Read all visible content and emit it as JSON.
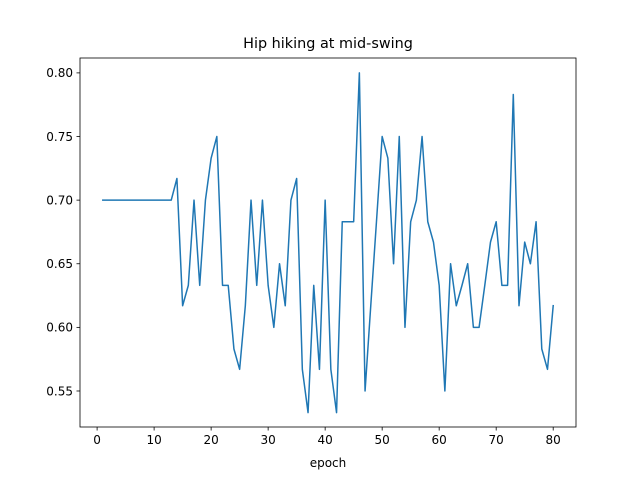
{
  "chart_data": {
    "type": "line",
    "title": "Hip hiking at mid-swing",
    "xlabel": "epoch",
    "ylabel": "",
    "xlim": [
      -3,
      84
    ],
    "ylim": [
      0.5217,
      0.8117
    ],
    "xticks": [
      0,
      10,
      20,
      30,
      40,
      50,
      60,
      70,
      80
    ],
    "yticks": [
      0.55,
      0.6,
      0.65,
      0.7,
      0.75,
      0.8
    ],
    "xtick_labels": [
      "0",
      "10",
      "20",
      "30",
      "40",
      "50",
      "60",
      "70",
      "80"
    ],
    "ytick_labels": [
      "0.55",
      "0.60",
      "0.65",
      "0.70",
      "0.75",
      "0.80"
    ],
    "grid": false,
    "legend": "none",
    "series": [
      {
        "color": "#1f77b4",
        "x": [
          1,
          2,
          3,
          4,
          5,
          6,
          7,
          8,
          9,
          10,
          11,
          12,
          13,
          14,
          15,
          16,
          17,
          18,
          19,
          20,
          21,
          22,
          23,
          24,
          25,
          26,
          27,
          28,
          29,
          30,
          31,
          32,
          33,
          34,
          35,
          36,
          37,
          38,
          39,
          40,
          41,
          42,
          43,
          44,
          45,
          46,
          47,
          48,
          49,
          50,
          51,
          52,
          53,
          54,
          55,
          56,
          57,
          58,
          59,
          60,
          61,
          62,
          63,
          64,
          65,
          66,
          67,
          68,
          69,
          70,
          71,
          72,
          73,
          74,
          75,
          76,
          77,
          78,
          79,
          80
        ],
        "y": [
          0.7,
          0.7,
          0.7,
          0.7,
          0.7,
          0.7,
          0.7,
          0.7,
          0.7,
          0.7,
          0.7,
          0.7,
          0.7,
          0.717,
          0.617,
          0.633,
          0.7,
          0.633,
          0.7,
          0.733,
          0.75,
          0.633,
          0.633,
          0.583,
          0.567,
          0.617,
          0.7,
          0.633,
          0.7,
          0.633,
          0.6,
          0.65,
          0.617,
          0.7,
          0.717,
          0.567,
          0.533,
          0.633,
          0.567,
          0.7,
          0.567,
          0.533,
          0.683,
          0.683,
          0.683,
          0.8,
          0.55,
          0.617,
          0.683,
          0.75,
          0.733,
          0.65,
          0.75,
          0.6,
          0.683,
          0.7,
          0.75,
          0.683,
          0.667,
          0.633,
          0.55,
          0.65,
          0.617,
          0.633,
          0.65,
          0.6,
          0.6,
          0.633,
          0.667,
          0.683,
          0.633,
          0.633,
          0.783,
          0.617,
          0.667,
          0.65,
          0.683,
          0.583,
          0.567,
          0.617
        ]
      }
    ]
  }
}
